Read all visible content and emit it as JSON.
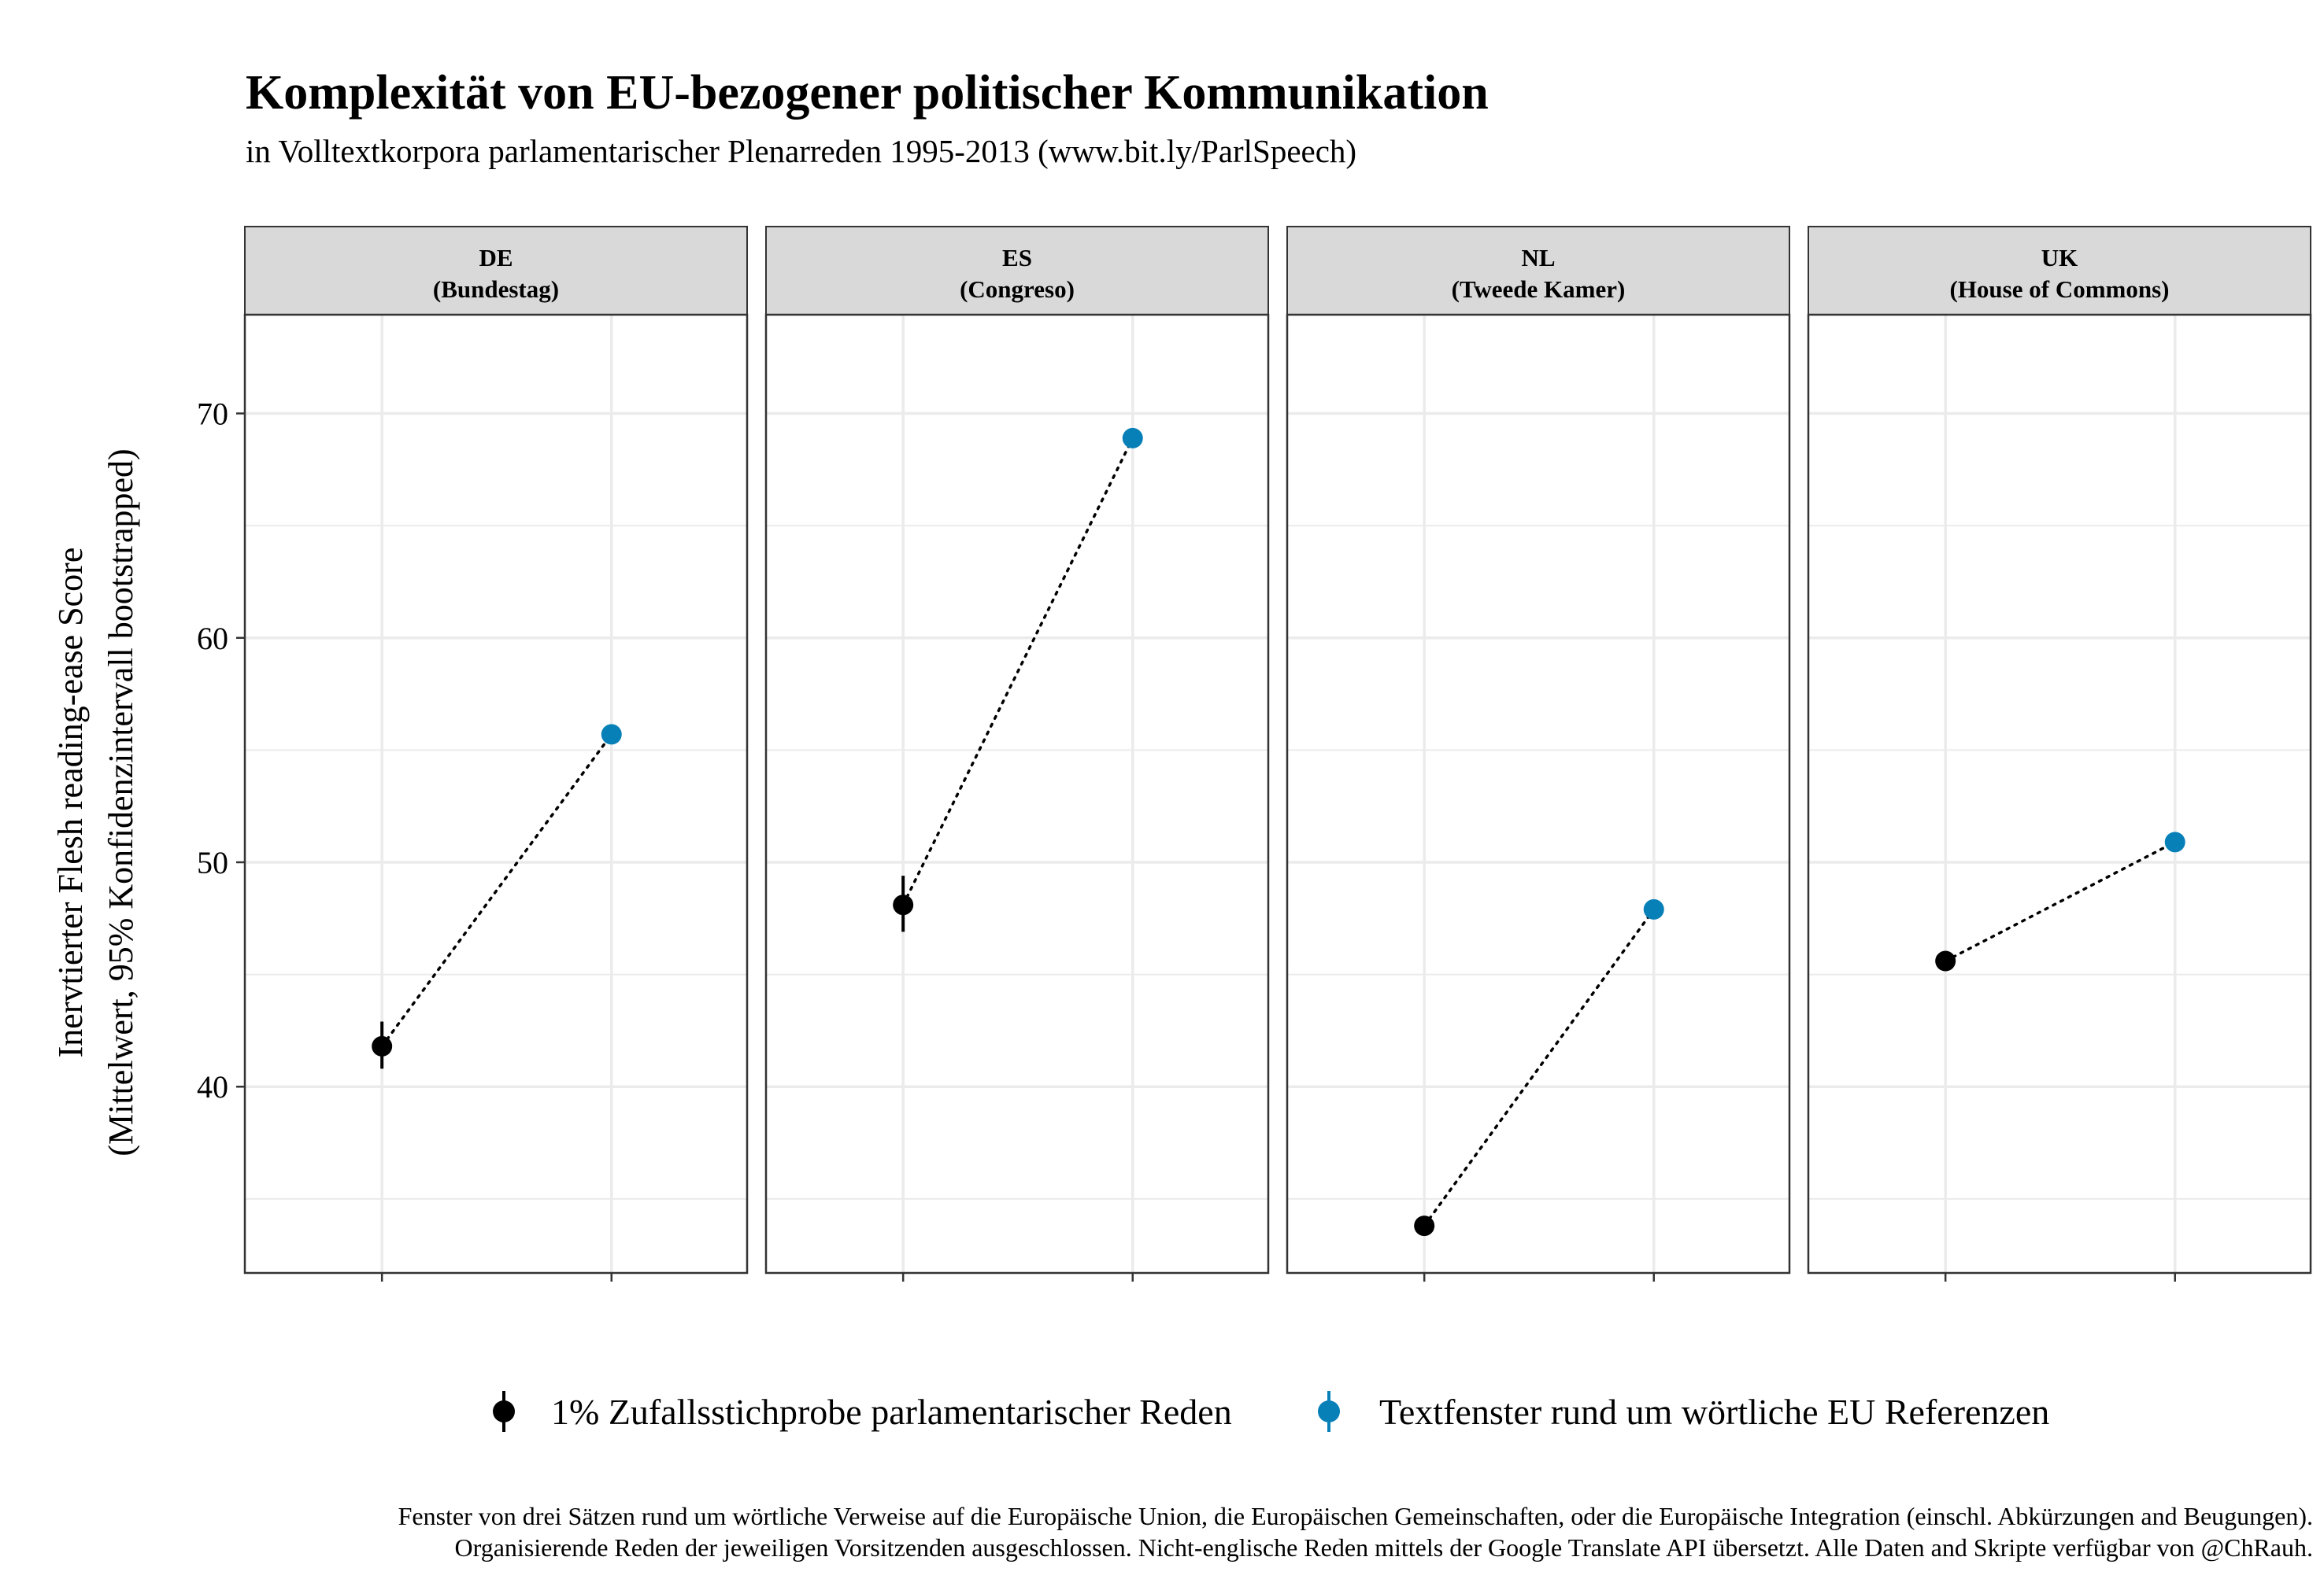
{
  "title": "Komplexität von EU-bezogener politischer Kommunikation",
  "subtitle": "in Volltextkorpora parlamentarischer Plenarreden 1995-2013 (www.bit.ly/ParlSpeech)",
  "caption": {
    "line1": "Fenster von drei Sätzen rund um wörtliche Verweise auf die Europäische Union, die Europäischen Gemeinschaften, oder die Europäische Integration (einschl. Abkürzungen and Beugungen).",
    "line2": "Organisierende Reden der jeweiligen Vorsitzenden ausgeschlossen. Nicht-englische Reden mittels der Google Translate API übersetzt. Alle Daten and Skripte verfügbar von @ChRauh."
  },
  "colors": {
    "random_sample": "#000000",
    "eu_window": "#0780B8",
    "strip_bg": "#D9D9D9",
    "grid": "#EBEBEB"
  },
  "chart_data": {
    "type": "scatter",
    "ylabel_line1": "Inervtierter Flesh reading-ease Score",
    "ylabel_line2": "(Mittelwert, 95% Konfidenzintervall bootstrapped)",
    "ylim": [
      31.7,
      74.4
    ],
    "yticks": [
      40,
      50,
      60,
      70
    ],
    "y_minor": [
      35,
      45,
      55,
      65
    ],
    "grid": true,
    "legend_position": "bottom",
    "series": [
      {
        "key": "random_sample",
        "name": "1% Zufallsstichprobe parlamentarischer Reden"
      },
      {
        "key": "eu_window",
        "name": "Textfenster rund um wörtliche EU Referenzen"
      }
    ],
    "panels": [
      {
        "strip_line1": "DE",
        "strip_line2": "(Bundestag)",
        "random_sample": {
          "mean": 41.8,
          "ci": [
            40.8,
            42.9
          ]
        },
        "eu_window": {
          "mean": 55.7,
          "ci": [
            55.5,
            55.9
          ]
        }
      },
      {
        "strip_line1": "ES",
        "strip_line2": "(Congreso)",
        "random_sample": {
          "mean": 48.1,
          "ci": [
            46.9,
            49.4
          ]
        },
        "eu_window": {
          "mean": 68.9,
          "ci": [
            68.7,
            69.1
          ]
        }
      },
      {
        "strip_line1": "NL",
        "strip_line2": "(Tweede Kamer)",
        "random_sample": {
          "mean": 33.8,
          "ci": [
            33.6,
            34.0
          ]
        },
        "eu_window": {
          "mean": 47.9,
          "ci": [
            47.7,
            48.1
          ]
        }
      },
      {
        "strip_line1": "UK",
        "strip_line2": "(House of Commons)",
        "random_sample": {
          "mean": 45.6,
          "ci": [
            45.4,
            45.8
          ]
        },
        "eu_window": {
          "mean": 50.9,
          "ci": [
            50.7,
            51.1
          ]
        }
      }
    ]
  }
}
